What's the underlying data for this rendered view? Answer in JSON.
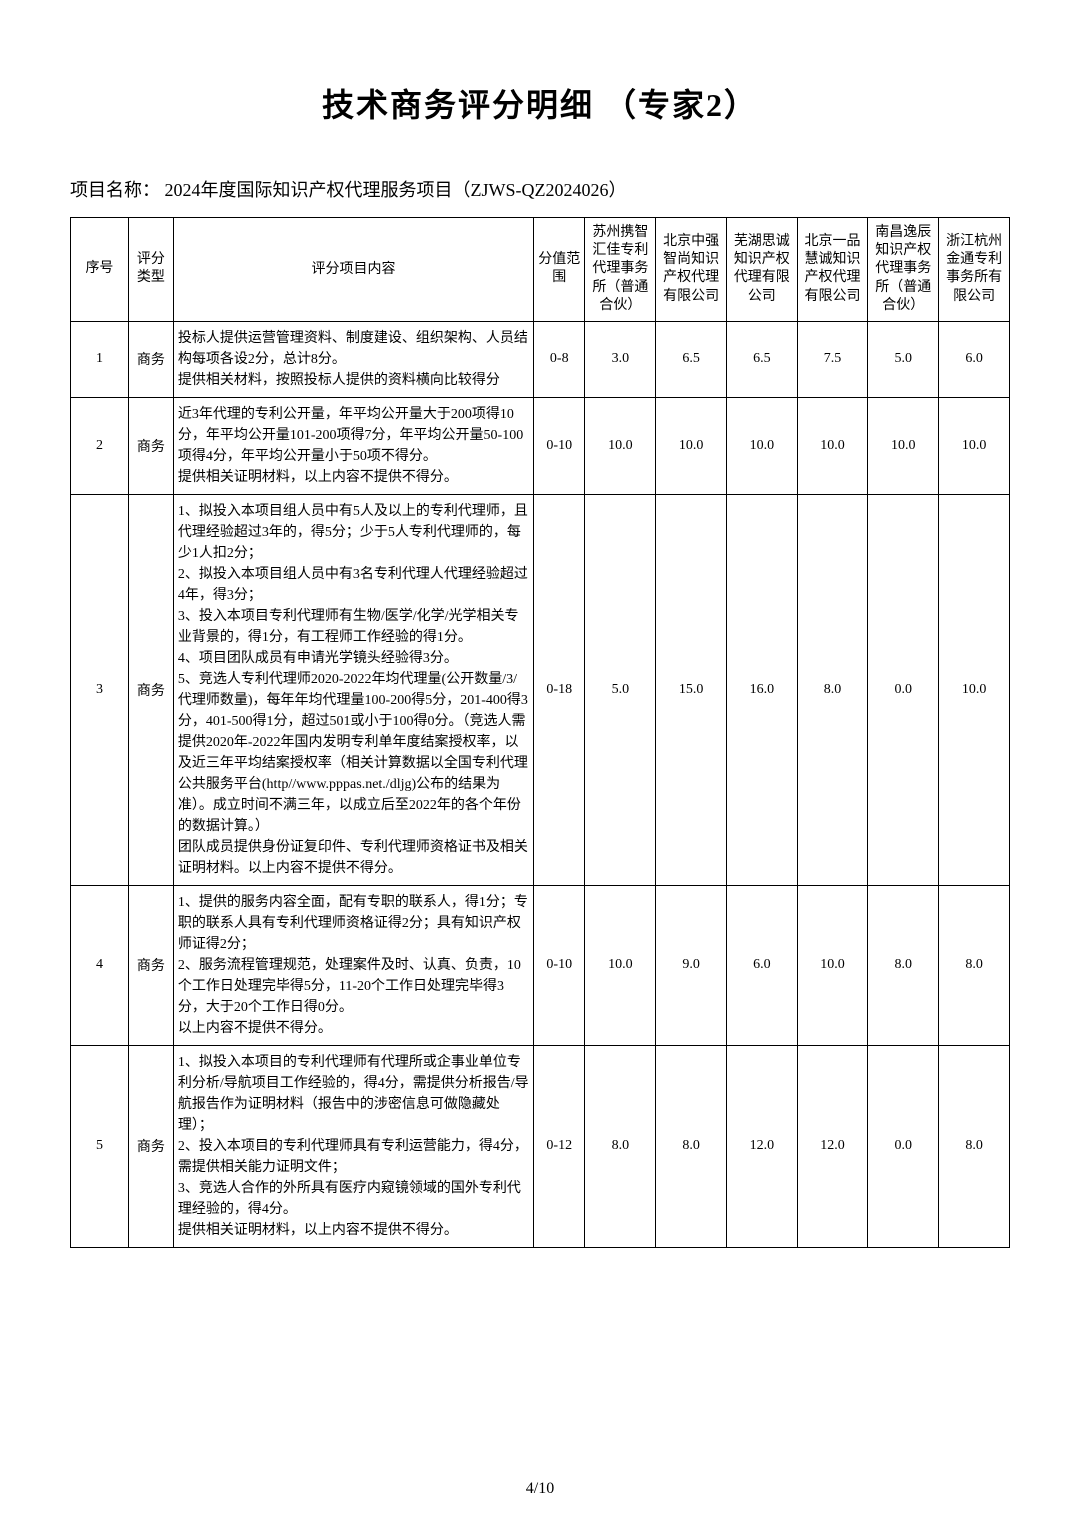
{
  "title": "技术商务评分明细 （专家2）",
  "project_label": "项目名称：",
  "project_name": "2024年度国际知识产权代理服务项目（ZJWS-QZ2024026）",
  "headers": {
    "seq": "序号",
    "type": "评分类型",
    "content": "评分项目内容",
    "range": "分值范围",
    "c1": "苏州携智汇佳专利代理事务所（普通合伙）",
    "c2": "北京中强智尚知识产权代理有限公司",
    "c3": "芜湖思诚知识产权代理有限公司",
    "c4": "北京一品慧诚知识产权代理有限公司",
    "c5": "南昌逸辰知识产权代理事务所（普通合伙）",
    "c6": "浙江杭州金通专利事务所有限公司"
  },
  "rows": [
    {
      "seq": "1",
      "type": "商务",
      "content": "投标人提供运营管理资料、制度建设、组织架构、人员结构每项各设2分，总计8分。\n提供相关材料，按照投标人提供的资料横向比较得分",
      "range": "0-8",
      "s1": "3.0",
      "s2": "6.5",
      "s3": "6.5",
      "s4": "7.5",
      "s5": "5.0",
      "s6": "6.0"
    },
    {
      "seq": "2",
      "type": "商务",
      "content": "近3年代理的专利公开量，年平均公开量大于200项得10分，年平均公开量101-200项得7分，年平均公开量50-100项得4分，年平均公开量小于50项不得分。\n提供相关证明材料，以上内容不提供不得分。",
      "range": "0-10",
      "s1": "10.0",
      "s2": "10.0",
      "s3": "10.0",
      "s4": "10.0",
      "s5": "10.0",
      "s6": "10.0"
    },
    {
      "seq": "3",
      "type": "商务",
      "content": "1、拟投入本项目组人员中有5人及以上的专利代理师，且代理经验超过3年的，得5分；少于5人专利代理师的，每少1人扣2分；\n2、拟投入本项目组人员中有3名专利代理人代理经验超过4年，得3分；\n3、投入本项目专利代理师有生物/医学/化学/光学相关专业背景的，得1分，有工程师工作经验的得1分。\n4、项目团队成员有申请光学镜头经验得3分。\n5、竞选人专利代理师2020-2022年均代理量(公开数量/3/代理师数量)，每年年均代理量100-200得5分，201-400得3分，401-500得1分，超过501或小于100得0分。（竞选人需提供2020年-2022年国内发明专利单年度结案授权率，以及近三年平均结案授权率（相关计算数据以全国专利代理公共服务平台(http//www.pppas.net./dljg)公布的结果为准）。成立时间不满三年，以成立后至2022年的各个年份的数据计算。）\n团队成员提供身份证复印件、专利代理师资格证书及相关证明材料。以上内容不提供不得分。",
      "range": "0-18",
      "s1": "5.0",
      "s2": "15.0",
      "s3": "16.0",
      "s4": "8.0",
      "s5": "0.0",
      "s6": "10.0"
    },
    {
      "seq": "4",
      "type": "商务",
      "content": "1、提供的服务内容全面，配有专职的联系人，得1分；专职的联系人具有专利代理师资格证得2分；具有知识产权师证得2分；\n2、服务流程管理规范，处理案件及时、认真、负责，10个工作日处理完毕得5分，11-20个工作日处理完毕得3分，大于20个工作日得0分。\n以上内容不提供不得分。",
      "range": "0-10",
      "s1": "10.0",
      "s2": "9.0",
      "s3": "6.0",
      "s4": "10.0",
      "s5": "8.0",
      "s6": "8.0"
    },
    {
      "seq": "5",
      "type": "商务",
      "content": "1、拟投入本项目的专利代理师有代理所或企事业单位专利分析/导航项目工作经验的，得4分，需提供分析报告/导航报告作为证明材料（报告中的涉密信息可做隐藏处理）；\n2、投入本项目的专利代理师具有专利运营能力，得4分，需提供相关能力证明文件；\n3、竞选人合作的外所具有医疗内窥镜领域的国外专利代理经验的，得4分。\n提供相关证明材料，以上内容不提供不得分。",
      "range": "0-12",
      "s1": "8.0",
      "s2": "8.0",
      "s3": "12.0",
      "s4": "12.0",
      "s5": "0.0",
      "s6": "8.0"
    }
  ],
  "page": "4/10"
}
